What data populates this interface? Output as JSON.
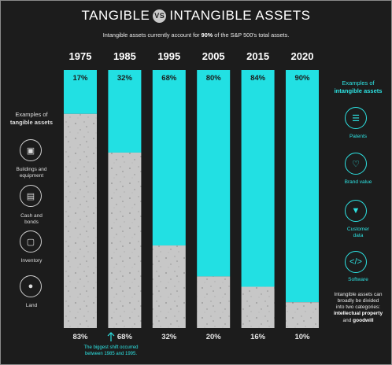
{
  "title": {
    "left": "TANGIBLE",
    "vs": "VS",
    "right": "INTANGIBLE ASSETS"
  },
  "subtitle": {
    "before": "Intangible assets currently account for ",
    "bold": "90%",
    "after": " of the S&P 500's total assets."
  },
  "colors": {
    "intangible": "#22e0e3",
    "tangible": "#c7c7c7",
    "background": "#1c1c1c"
  },
  "chart_data": {
    "type": "bar",
    "stacked": true,
    "categories": [
      "1975",
      "1985",
      "1995",
      "2005",
      "2015",
      "2020"
    ],
    "series": [
      {
        "name": "Intangible",
        "values": [
          17,
          32,
          68,
          80,
          84,
          90
        ],
        "labels": [
          "17%",
          "32%",
          "68%",
          "80%",
          "84%",
          "90%"
        ]
      },
      {
        "name": "Tangible",
        "values": [
          83,
          68,
          32,
          20,
          16,
          10
        ],
        "labels": [
          "83%",
          "68%",
          "32%",
          "20%",
          "16%",
          "10%"
        ]
      }
    ],
    "ylim": [
      0,
      100
    ]
  },
  "tangible": {
    "heading_line1": "Examples of",
    "heading_line2": "tangible assets",
    "items": [
      {
        "line1": "Buildings and",
        "line2": "equipment",
        "icon": "factory-icon"
      },
      {
        "line1": "Cash and",
        "line2": "bonds",
        "icon": "cash-icon"
      },
      {
        "line1": "Inventory",
        "line2": "",
        "icon": "box-icon"
      },
      {
        "line1": "Land",
        "line2": "",
        "icon": "location-pin-icon"
      }
    ]
  },
  "intangible": {
    "heading_line1": "Examples of",
    "heading_line2": "intangible assets",
    "items": [
      {
        "line1": "Patents",
        "line2": "",
        "icon": "document-icon"
      },
      {
        "line1": "Brand value",
        "line2": "",
        "icon": "heart-icon"
      },
      {
        "line1": "Customer",
        "line2": "data",
        "icon": "funnel-icon"
      },
      {
        "line1": "Software",
        "line2": "",
        "icon": "code-icon"
      }
    ],
    "footer_line1": "Intangible assets can",
    "footer_line2": "broadly be divided",
    "footer_line3": "into two categories:",
    "footer_bold1": "intellectual property",
    "footer_and": "and",
    "footer_bold2": "goodwill"
  },
  "note": {
    "line1": "The biggest shift occurred",
    "line2": "between 1985 and 1995."
  }
}
